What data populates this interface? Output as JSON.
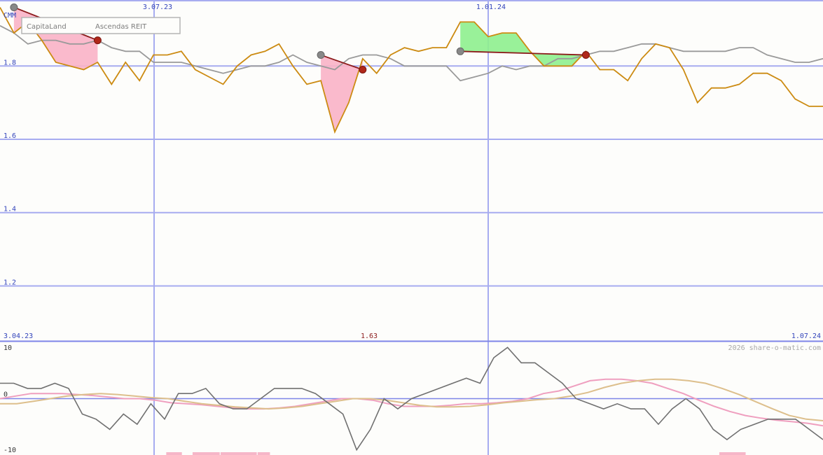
{
  "chart_data": [
    {
      "panel": "price",
      "type": "line",
      "legend": [
        "CapitaLand",
        "Ascendas REIT"
      ],
      "legend_short": "CMM",
      "y_ticks": [
        1.8,
        1.6,
        1.4,
        1.2
      ],
      "y_tick_labels": [
        "1.8",
        "1.6",
        "1.4",
        "1.2"
      ],
      "ylim": [
        1.05,
        1.98
      ],
      "x_top_labels": [
        "3.07.23",
        "1.01.24"
      ],
      "x_bottom_labels": [
        "3.04.23",
        "1.07.24"
      ],
      "center_value": "1.63",
      "grid": true,
      "series": [
        {
          "name": "CapitaLand",
          "color": "#cc8b12",
          "values": [
            1.96,
            1.89,
            1.92,
            1.87,
            1.81,
            1.8,
            1.79,
            1.81,
            1.75,
            1.81,
            1.76,
            1.83,
            1.83,
            1.84,
            1.79,
            1.77,
            1.75,
            1.8,
            1.83,
            1.84,
            1.86,
            1.8,
            1.75,
            1.76,
            1.62,
            1.7,
            1.82,
            1.78,
            1.83,
            1.85,
            1.84,
            1.85,
            1.85,
            1.92,
            1.92,
            1.88,
            1.89,
            1.89,
            1.84,
            1.8,
            1.8,
            1.8,
            1.84,
            1.79,
            1.79,
            1.76,
            1.82,
            1.86,
            1.85,
            1.79,
            1.7,
            1.74,
            1.74,
            1.75,
            1.78,
            1.78,
            1.76,
            1.71,
            1.69,
            1.69
          ]
        },
        {
          "name": "Ascendas REIT",
          "color": "#9a9a9a",
          "values": [
            1.91,
            1.89,
            1.86,
            1.87,
            1.87,
            1.86,
            1.86,
            1.87,
            1.85,
            1.84,
            1.84,
            1.81,
            1.81,
            1.81,
            1.8,
            1.79,
            1.78,
            1.79,
            1.8,
            1.8,
            1.81,
            1.83,
            1.81,
            1.8,
            1.79,
            1.82,
            1.83,
            1.83,
            1.82,
            1.8,
            1.8,
            1.8,
            1.8,
            1.76,
            1.77,
            1.78,
            1.8,
            1.79,
            1.8,
            1.8,
            1.82,
            1.82,
            1.83,
            1.84,
            1.84,
            1.85,
            1.86,
            1.86,
            1.85,
            1.84,
            1.84,
            1.84,
            1.84,
            1.85,
            1.85,
            1.83,
            1.82,
            1.81,
            1.81,
            1.82
          ]
        }
      ],
      "signals": [
        {
          "from_index": 1,
          "to_index": 7,
          "from_value": 1.96,
          "to_value": 1.87,
          "outcome": "loss"
        },
        {
          "from_index": 23,
          "to_index": 26,
          "from_value": 1.83,
          "to_value": 1.79,
          "outcome": "loss"
        },
        {
          "from_index": 33,
          "to_index": 42,
          "from_value": 1.84,
          "to_value": 1.83,
          "outcome": "gain"
        }
      ],
      "attribution": "2026 share-o-matic.com"
    },
    {
      "panel": "oscillator",
      "type": "line",
      "y_tick_labels": [
        "10",
        "0",
        "-10"
      ],
      "ylim": [
        -11,
        11
      ],
      "series": [
        {
          "color": "#707070",
          "values": [
            3,
            3,
            2,
            2,
            3,
            2,
            -3,
            -4,
            -6,
            -3,
            -5,
            -1,
            -4,
            1,
            1,
            2,
            -1,
            -2,
            -2,
            0,
            2,
            2,
            2,
            1,
            -1,
            -3,
            -10,
            -6,
            0,
            -2,
            0,
            1,
            2,
            3,
            4,
            3,
            8,
            10,
            7,
            7,
            5,
            3,
            0,
            -1,
            -2,
            -1,
            -2,
            -2,
            -5,
            -2,
            0,
            -2,
            -6,
            -8,
            -6,
            -5,
            -4,
            -4,
            -4,
            -6,
            -8
          ]
        },
        {
          "color": "#ef9fbf",
          "values": [
            0,
            0.5,
            1,
            1,
            1,
            0.8,
            0.6,
            0.3,
            0,
            0,
            -0.3,
            -0.8,
            -1,
            -1.2,
            -1.5,
            -1.8,
            -2,
            -2,
            -1.8,
            -1.5,
            -1,
            -0.5,
            0,
            0,
            -0.3,
            -1,
            -1.5,
            -1.5,
            -1.5,
            -1.3,
            -1,
            -1,
            -0.8,
            -0.5,
            0,
            1,
            1.5,
            2.5,
            3.5,
            3.8,
            3.8,
            3.5,
            3,
            2,
            1,
            -0.3,
            -1.5,
            -2.5,
            -3.3,
            -3.8,
            -4.2,
            -4.5,
            -4.8,
            -5.3
          ]
        },
        {
          "color": "#ddbf8c",
          "values": [
            -1,
            -1,
            -0.5,
            0,
            0.5,
            0.8,
            1,
            0.8,
            0.5,
            0.2,
            0,
            -0.5,
            -1,
            -1.3,
            -1.6,
            -1.8,
            -2,
            -1.8,
            -1.5,
            -1,
            -0.5,
            0,
            0,
            -0.3,
            -0.8,
            -1.3,
            -1.6,
            -1.6,
            -1.5,
            -1.2,
            -0.8,
            -0.5,
            -0.2,
            0,
            0.5,
            1.2,
            2.2,
            3,
            3.5,
            3.8,
            3.8,
            3.5,
            3,
            2,
            0.8,
            -0.6,
            -2,
            -3.3,
            -4,
            -4.3
          ]
        }
      ],
      "bars": [
        {
          "from": 0.202,
          "to": 0.221
        },
        {
          "from": 0.234,
          "to": 0.267
        },
        {
          "from": 0.268,
          "to": 0.312
        },
        {
          "from": 0.313,
          "to": 0.328
        },
        {
          "from": 0.874,
          "to": 0.906
        }
      ],
      "bar_color": "#f6b6c8"
    }
  ]
}
